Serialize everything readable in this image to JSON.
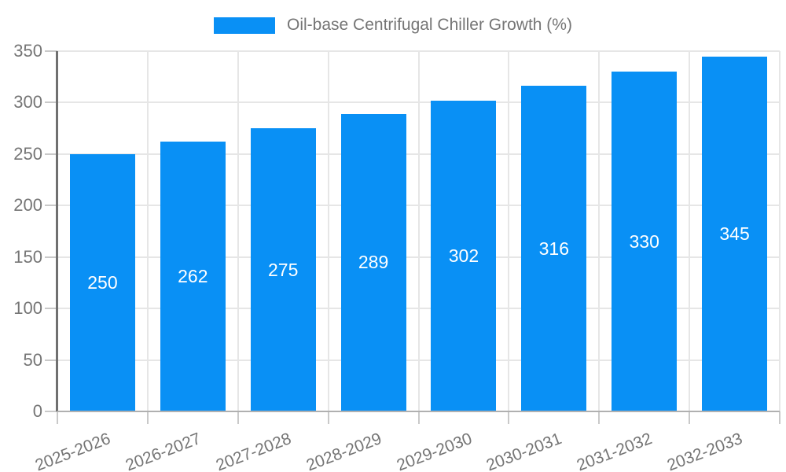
{
  "chart_data": {
    "type": "bar",
    "title": "Oil-base Centrifugal Chiller Growth (%)",
    "categories": [
      "2025-2026",
      "2026-2027",
      "2027-2028",
      "2028-2029",
      "2029-2030",
      "2030-2031",
      "2031-2032",
      "2032-2033"
    ],
    "values": [
      250,
      262,
      275,
      289,
      302,
      316,
      330,
      345
    ],
    "xlabel": "",
    "ylabel": "",
    "ylim": [
      0,
      350
    ],
    "yticks": [
      0,
      50,
      100,
      150,
      200,
      250,
      300,
      350
    ],
    "legend_position": "top",
    "grid": true,
    "bar_color": "#0990F5",
    "bar_label_color": "#ffffff",
    "axis_text_color": "#757575",
    "grid_color": "#e6e6e6",
    "tick_color": "#c9c9c9",
    "axis_line_color": "#707070",
    "baseline_color": "#b0b0b0",
    "background_color": "#ffffff"
  }
}
